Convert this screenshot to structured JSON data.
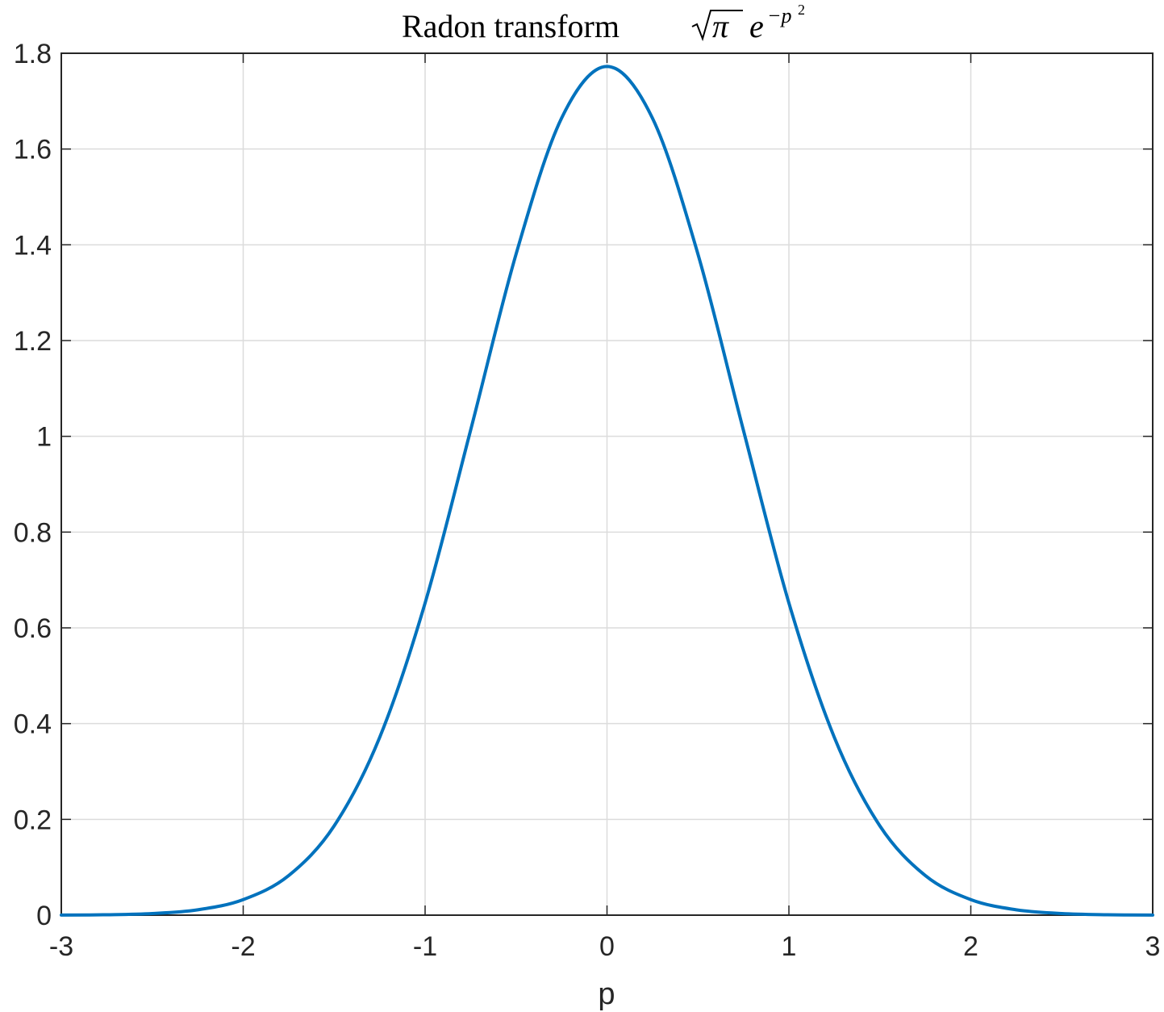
{
  "chart_data": {
    "type": "line",
    "title_text": "Radon transform",
    "title_math": {
      "pi": "π",
      "base": "e",
      "exponent": "−p",
      "exponent_power": "2"
    },
    "xlabel": "p",
    "ylabel": "",
    "xlim": [
      -3,
      3
    ],
    "ylim": [
      0,
      1.8
    ],
    "xticks": [
      -3,
      -2,
      -1,
      0,
      1,
      2,
      3
    ],
    "xtick_labels": [
      "-3",
      "-2",
      "-1",
      "0",
      "1",
      "2",
      "3"
    ],
    "yticks": [
      0,
      0.2,
      0.4,
      0.6,
      0.8,
      1,
      1.2,
      1.4,
      1.6,
      1.8
    ],
    "ytick_labels": [
      "0",
      "0.2",
      "0.4",
      "0.6",
      "0.8",
      "1",
      "1.2",
      "1.4",
      "1.6",
      "1.8"
    ],
    "grid": true,
    "series": [
      {
        "color": "#0072bd",
        "x": [
          -3,
          -2.75,
          -2.5,
          -2.25,
          -2,
          -1.75,
          -1.5,
          -1.25,
          -1,
          -0.75,
          -0.5,
          -0.25,
          0,
          0.25,
          0.5,
          0.75,
          1,
          1.25,
          1.5,
          1.75,
          2,
          2.25,
          2.5,
          2.75,
          3
        ],
        "y": [
          0.0002,
          0.0009,
          0.0034,
          0.0112,
          0.0325,
          0.0827,
          0.1865,
          0.371,
          0.652,
          1.0126,
          1.3804,
          1.6643,
          1.7725,
          1.6643,
          1.3804,
          1.0126,
          0.652,
          0.371,
          0.1865,
          0.0827,
          0.0325,
          0.0112,
          0.0034,
          0.0009,
          0.0002
        ]
      }
    ]
  }
}
